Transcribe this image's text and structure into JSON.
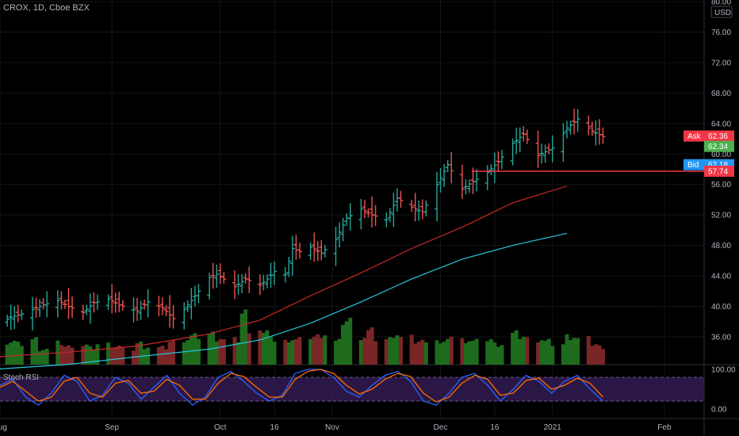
{
  "symbol_header": "CROX, 1D, Cboe BZX",
  "currency_label": "USD",
  "indicator_label": "Stoch RSI",
  "colors": {
    "background": "#000000",
    "up": "#26a69a",
    "down": "#ef5350",
    "vol_up": "#1e6b1e",
    "vol_down": "#7a2626",
    "ma_red": "#c62828",
    "ma_cyan": "#26c6da",
    "stoch_k": "#2962ff",
    "stoch_d": "#ff6d00",
    "stoch_band": "#3a1f5c",
    "hline": "#f23645",
    "ask": "#f23645",
    "bid": "#2196f3",
    "last": "#4caf50"
  },
  "chart_data": [
    {
      "type": "ohlc",
      "title": "CROX, 1D, Cboe BZX",
      "ylim": [
        32,
        80
      ],
      "y_ticks": [
        "80.00",
        "76.00",
        "72.00",
        "68.00",
        "64.00",
        "60.00",
        "56.00",
        "52.00",
        "48.00",
        "44.00",
        "40.00",
        "36.00"
      ],
      "x_labels": [
        "Aug",
        "Sep",
        "Oct",
        "16",
        "Nov",
        "Dec",
        "16",
        "2021",
        "Feb"
      ],
      "x_label_dates": [
        "2020-08-01",
        "2020-09-01",
        "2020-10-01",
        "2020-10-16",
        "2020-11-01",
        "2020-12-01",
        "2020-12-16",
        "2021-01-01",
        "2021-02-01"
      ],
      "x_range": [
        "2020-08-01",
        "2021-02-12"
      ],
      "close_series": [
        [
          "2020-08-01",
          37.8
        ],
        [
          "2020-08-04",
          38.6
        ],
        [
          "2020-08-07",
          39.0
        ],
        [
          "2020-08-10",
          39.6
        ],
        [
          "2020-08-13",
          40.2
        ],
        [
          "2020-08-17",
          40.8
        ],
        [
          "2020-08-20",
          40.0
        ],
        [
          "2020-08-24",
          39.2
        ],
        [
          "2020-08-27",
          40.5
        ],
        [
          "2020-08-31",
          41.0
        ],
        [
          "2020-09-03",
          40.2
        ],
        [
          "2020-09-08",
          39.4
        ],
        [
          "2020-09-11",
          40.6
        ],
        [
          "2020-09-15",
          39.8
        ],
        [
          "2020-09-18",
          38.4
        ],
        [
          "2020-09-21",
          39.6
        ],
        [
          "2020-09-24",
          41.4
        ],
        [
          "2020-09-28",
          43.8
        ],
        [
          "2020-09-30",
          44.2
        ],
        [
          "2020-10-02",
          43.6
        ],
        [
          "2020-10-05",
          42.6
        ],
        [
          "2020-10-08",
          43.6
        ],
        [
          "2020-10-12",
          42.8
        ],
        [
          "2020-10-14",
          43.6
        ],
        [
          "2020-10-16",
          44.6
        ],
        [
          "2020-10-19",
          44.2
        ],
        [
          "2020-10-21",
          47.6
        ],
        [
          "2020-10-23",
          47.2
        ],
        [
          "2020-10-26",
          47.8
        ],
        [
          "2020-10-29",
          47.0
        ],
        [
          "2020-11-02",
          48.8
        ],
        [
          "2020-11-05",
          51.6
        ],
        [
          "2020-11-09",
          52.8
        ],
        [
          "2020-11-12",
          52.0
        ],
        [
          "2020-11-16",
          51.4
        ],
        [
          "2020-11-19",
          54.2
        ],
        [
          "2020-11-23",
          53.0
        ],
        [
          "2020-11-26",
          52.4
        ],
        [
          "2020-11-30",
          56.0
        ],
        [
          "2020-12-03",
          58.6
        ],
        [
          "2020-12-07",
          55.4
        ],
        [
          "2020-12-10",
          56.4
        ],
        [
          "2020-12-14",
          57.6
        ],
        [
          "2020-12-17",
          59.0
        ],
        [
          "2020-12-21",
          61.4
        ],
        [
          "2020-12-24",
          62.6
        ],
        [
          "2020-12-28",
          59.8
        ],
        [
          "2021-01-01",
          60.8
        ],
        [
          "2021-01-05",
          63.4
        ],
        [
          "2021-01-08",
          64.6
        ],
        [
          "2021-01-12",
          63.0
        ],
        [
          "2021-01-15",
          62.3
        ]
      ],
      "ma_red": [
        [
          "2020-08-01",
          33.4
        ],
        [
          "2020-08-20",
          34.0
        ],
        [
          "2020-09-08",
          34.8
        ],
        [
          "2020-09-28",
          36.4
        ],
        [
          "2020-10-12",
          38.2
        ],
        [
          "2020-10-26",
          41.4
        ],
        [
          "2020-11-09",
          44.4
        ],
        [
          "2020-11-23",
          47.6
        ],
        [
          "2020-12-07",
          50.4
        ],
        [
          "2020-12-21",
          53.6
        ],
        [
          "2021-01-05",
          55.8
        ]
      ],
      "ma_cyan": [
        [
          "2020-08-01",
          31.8
        ],
        [
          "2020-08-20",
          32.4
        ],
        [
          "2020-09-08",
          33.4
        ],
        [
          "2020-09-28",
          34.4
        ],
        [
          "2020-10-12",
          35.6
        ],
        [
          "2020-10-26",
          37.8
        ],
        [
          "2020-11-09",
          40.6
        ],
        [
          "2020-11-23",
          43.6
        ],
        [
          "2020-12-07",
          46.2
        ],
        [
          "2020-12-21",
          48.0
        ],
        [
          "2021-01-05",
          49.6
        ]
      ],
      "horizontal_line": 57.74,
      "price_tags": [
        {
          "label": "Ask",
          "value": "62.36",
          "y": 62.36,
          "color_key": "ask"
        },
        {
          "label": "",
          "value": "62.34",
          "y": 61.0,
          "color_key": "last"
        },
        {
          "label": "Bid",
          "value": "62.18",
          "y": 58.6,
          "color_key": "bid"
        },
        {
          "label": "",
          "value": "57.74",
          "y": 57.74,
          "color_key": "hline"
        }
      ],
      "volume_relative": [
        0.45,
        0.4,
        0.5,
        0.3,
        0.42,
        0.35,
        0.38,
        0.32,
        0.4,
        0.36,
        0.3,
        0.42,
        0.35,
        0.33,
        0.45,
        0.5,
        0.55,
        0.6,
        0.52,
        0.48,
        1.0,
        0.7,
        0.6,
        0.45,
        0.5,
        0.48,
        0.55,
        0.6,
        0.45,
        0.85,
        0.55,
        0.65,
        0.5,
        0.6,
        0.52,
        0.45,
        0.5,
        0.4,
        0.55,
        0.48,
        0.45,
        0.5,
        0.4,
        0.6,
        0.55,
        0.5,
        0.45,
        0.4,
        0.55,
        0.5,
        0.4,
        0.35
      ]
    },
    {
      "type": "line",
      "title": "Stoch RSI",
      "ylim": [
        0,
        100
      ],
      "y_ticks": [
        "100.00",
        "0.00"
      ],
      "band": [
        20,
        80
      ],
      "series": [
        {
          "name": "K",
          "color_key": "stoch_k",
          "values": [
            60,
            75,
            30,
            10,
            40,
            85,
            70,
            20,
            35,
            80,
            65,
            25,
            55,
            85,
            40,
            10,
            30,
            80,
            95,
            70,
            40,
            20,
            35,
            90,
            100,
            100,
            80,
            45,
            30,
            60,
            85,
            95,
            70,
            20,
            10,
            40,
            80,
            90,
            60,
            20,
            50,
            85,
            70,
            40,
            70,
            85,
            50,
            20
          ]
        },
        {
          "name": "D",
          "color_key": "stoch_d",
          "values": [
            55,
            70,
            45,
            20,
            30,
            70,
            80,
            40,
            30,
            65,
            72,
            40,
            45,
            75,
            60,
            25,
            25,
            65,
            90,
            82,
            55,
            30,
            30,
            75,
            95,
            100,
            90,
            60,
            38,
            50,
            75,
            90,
            82,
            40,
            18,
            30,
            65,
            85,
            75,
            35,
            40,
            72,
            78,
            50,
            60,
            78,
            65,
            30
          ]
        }
      ]
    }
  ]
}
